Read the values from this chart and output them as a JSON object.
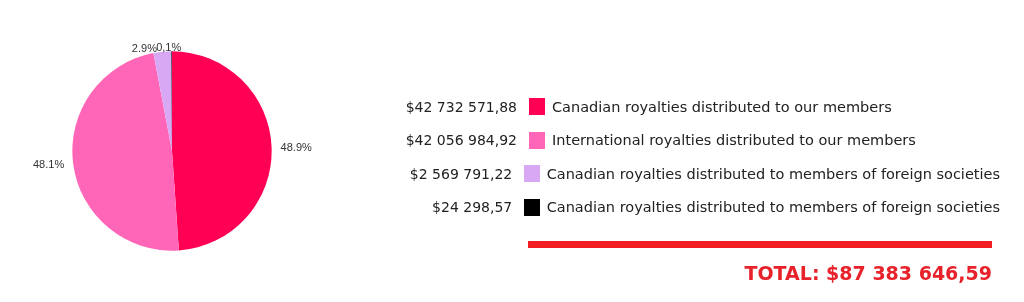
{
  "chart_data": {
    "type": "pie",
    "categories": [
      "Canadian royalties distributed to our members",
      "International royalties distributed to our members",
      "Canadian royalties distributed to members of foreign societies",
      "Canadian royalties distributed to members of foreign societies"
    ],
    "values": [
      48.9,
      48.1,
      2.9,
      0.1
    ],
    "value_labels": [
      "48.9%",
      "48.1%",
      "2.9%",
      "0,1%"
    ],
    "colors": [
      "#ff0055",
      "#ff66b8",
      "#d8a8f5",
      "#000000"
    ],
    "legend": "right",
    "annotations": [
      "$42 732 571,88",
      "$42 056 984,92",
      "$2 569 791,22",
      "$24 298,57",
      "TOTAL: $87 383 646,59"
    ]
  }
}
